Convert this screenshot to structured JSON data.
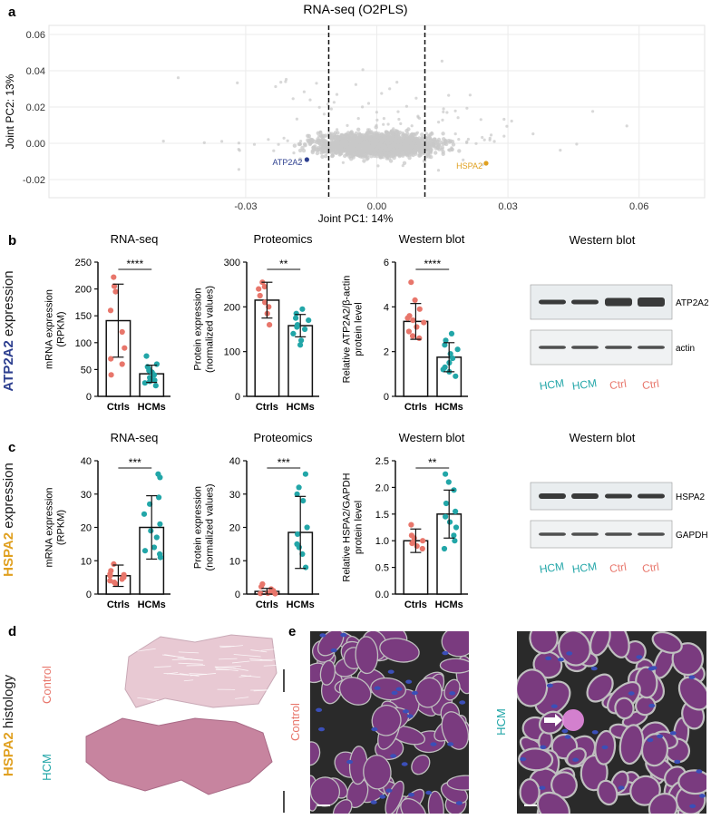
{
  "colors": {
    "ctrl": "#e8766b",
    "hcm": "#22a6a8",
    "atp_label": "#2d3f8f",
    "hspa_label": "#e0a020",
    "scatter_point": "#c8c8c8",
    "tissue_control": "#e8c9d3",
    "tissue_hcm": "#c7849f",
    "image_bg": "#2a2a2a",
    "cell_magenta": "#7a3b7f",
    "nuclei_blue": "#3b4fb8"
  },
  "panel_letters": [
    "a",
    "b",
    "c",
    "d",
    "e"
  ],
  "panel_a": {
    "title": "RNA-seq (O2PLS)",
    "xlabel": "Joint PC1: 14%",
    "ylabel": "Joint PC2: 13%"
  },
  "row_b": {
    "side_label_gene": "ATP2A2",
    "side_label_suffix": " expression"
  },
  "row_c": {
    "side_label_gene": "HSPA2",
    "side_label_suffix": " expression"
  },
  "blot_b": {
    "title": "Western blot",
    "band_labels": [
      "ATP2A2",
      "actin"
    ],
    "lanes": [
      "HCM",
      "HCM",
      "Ctrl",
      "Ctrl"
    ]
  },
  "blot_c": {
    "title": "Western blot",
    "band_labels": [
      "HSPA2",
      "GAPDH"
    ],
    "lanes": [
      "HCM",
      "HCM",
      "Ctrl",
      "Ctrl"
    ]
  },
  "panel_d": {
    "side_label_gene": "HSPA2",
    "side_label_suffix": " histology",
    "sample_labels": [
      "Control",
      "HCM"
    ]
  },
  "panel_e": {
    "sample_labels": [
      "Control",
      "HCM"
    ]
  },
  "chart_data": [
    {
      "id": "a",
      "type": "scatter",
      "title": "RNA-seq (O2PLS)",
      "xlabel": "Joint PC1: 14%",
      "ylabel": "Joint PC2: 13%",
      "xlim": [
        -0.075,
        0.075
      ],
      "ylim": [
        -0.03,
        0.065
      ],
      "xticks": [
        -0.03,
        0.0,
        0.03,
        0.06
      ],
      "xtick_labels": [
        "-0.03",
        "0.00",
        "0.03",
        "0.06"
      ],
      "yticks": [
        -0.02,
        0.0,
        0.02,
        0.04,
        0.06
      ],
      "ytick_labels": [
        "-0.02",
        "0.00",
        "0.02",
        "0.04",
        "0.06"
      ],
      "thresholds_x": [
        -0.011,
        0.011
      ],
      "highlighted": [
        {
          "label": "ATP2A2",
          "x": -0.016,
          "y": -0.009
        },
        {
          "label": "HSPA2",
          "x": 0.025,
          "y": -0.011
        }
      ],
      "grid": true
    },
    {
      "id": "b1",
      "type": "bar",
      "title": "RNA-seq",
      "ylabel": "mRNA expression\n(RPKM)",
      "categories": [
        "Ctrls",
        "HCMs"
      ],
      "ylim": [
        0,
        250
      ],
      "yticks": [
        0,
        50,
        100,
        150,
        200,
        250
      ],
      "means": [
        141,
        42
      ],
      "sd": [
        68,
        16
      ],
      "points": [
        [
          222,
          205,
          195,
          160,
          120,
          90,
          70,
          60,
          40
        ],
        [
          75,
          60,
          55,
          50,
          48,
          45,
          40,
          35,
          32,
          30,
          28,
          25,
          20
        ]
      ],
      "significance": "****"
    },
    {
      "id": "b2",
      "type": "bar",
      "title": "Proteomics",
      "ylabel": "Protein expression\n(normalized values)",
      "categories": [
        "Ctrls",
        "HCMs"
      ],
      "ylim": [
        0,
        300
      ],
      "yticks": [
        0,
        100,
        200,
        300
      ],
      "means": [
        215,
        158
      ],
      "sd": [
        40,
        25
      ],
      "points": [
        [
          255,
          245,
          240,
          225,
          210,
          200,
          185,
          160
        ],
        [
          195,
          185,
          175,
          170,
          160,
          155,
          150,
          140,
          125,
          115
        ]
      ],
      "significance": "**"
    },
    {
      "id": "b3",
      "type": "bar",
      "title": "Western blot",
      "ylabel": "Relative ATP2A2/β-actin\nprotein level",
      "categories": [
        "Ctrls",
        "HCMs"
      ],
      "ylim": [
        0,
        6
      ],
      "yticks": [
        0,
        2,
        4,
        6
      ],
      "means": [
        3.35,
        1.75
      ],
      "sd": [
        0.8,
        0.65
      ],
      "points": [
        [
          5.1,
          4.3,
          3.9,
          3.6,
          3.5,
          3.4,
          3.3,
          3.1,
          2.9,
          2.7,
          2.6
        ],
        [
          2.8,
          2.5,
          2.3,
          2.1,
          1.9,
          1.7,
          1.5,
          1.3,
          1.2,
          1.1,
          0.9
        ]
      ],
      "significance": "****"
    },
    {
      "id": "c1",
      "type": "bar",
      "title": "RNA-seq",
      "ylabel": "mRNA expression\n(RPKM)",
      "categories": [
        "Ctrls",
        "HCMs"
      ],
      "ylim": [
        0,
        40
      ],
      "yticks": [
        0,
        10,
        20,
        30,
        40
      ],
      "means": [
        5.5,
        20
      ],
      "sd": [
        3.2,
        9.5
      ],
      "points": [
        [
          9,
          7,
          6,
          5.8,
          5.5,
          5,
          4.5,
          4,
          3.5,
          3
        ],
        [
          36,
          35,
          29,
          27,
          24,
          21,
          19,
          17,
          14,
          13,
          12,
          11
        ]
      ],
      "significance": "***"
    },
    {
      "id": "c2",
      "type": "bar",
      "title": "Proteomics",
      "ylabel": "Protein expression\n(normalized values)",
      "categories": [
        "Ctrls",
        "HCMs"
      ],
      "ylim": [
        0,
        40
      ],
      "yticks": [
        0,
        10,
        20,
        30,
        40
      ],
      "means": [
        0.8,
        18.5
      ],
      "sd": [
        0.9,
        10.8
      ],
      "points": [
        [
          3,
          2.2,
          1.5,
          1,
          0.6,
          0.3,
          0.2,
          0.1
        ],
        [
          36,
          32,
          30,
          28,
          20,
          18,
          15,
          14,
          12,
          8
        ]
      ],
      "significance": "***"
    },
    {
      "id": "c3",
      "type": "bar",
      "title": "Western blot",
      "ylabel": "Relative HSPA2/GAPDH\nprotein level",
      "categories": [
        "Ctrls",
        "HCMs"
      ],
      "ylim": [
        0,
        2.5
      ],
      "yticks": [
        0,
        0.5,
        1.0,
        1.5,
        2.0,
        2.5
      ],
      "ytick_labels": [
        "0.0",
        "0.5",
        "1.0",
        "1.5",
        "2.0",
        "2.5"
      ],
      "means": [
        1.0,
        1.5
      ],
      "sd": [
        0.22,
        0.45
      ],
      "points": [
        [
          1.3,
          1.1,
          1.05,
          1.0,
          0.98,
          0.95,
          0.9,
          0.85
        ],
        [
          2.25,
          2.1,
          1.95,
          1.7,
          1.55,
          1.45,
          1.35,
          1.25,
          1.1,
          1.0,
          0.85
        ]
      ],
      "significance": "**"
    }
  ]
}
